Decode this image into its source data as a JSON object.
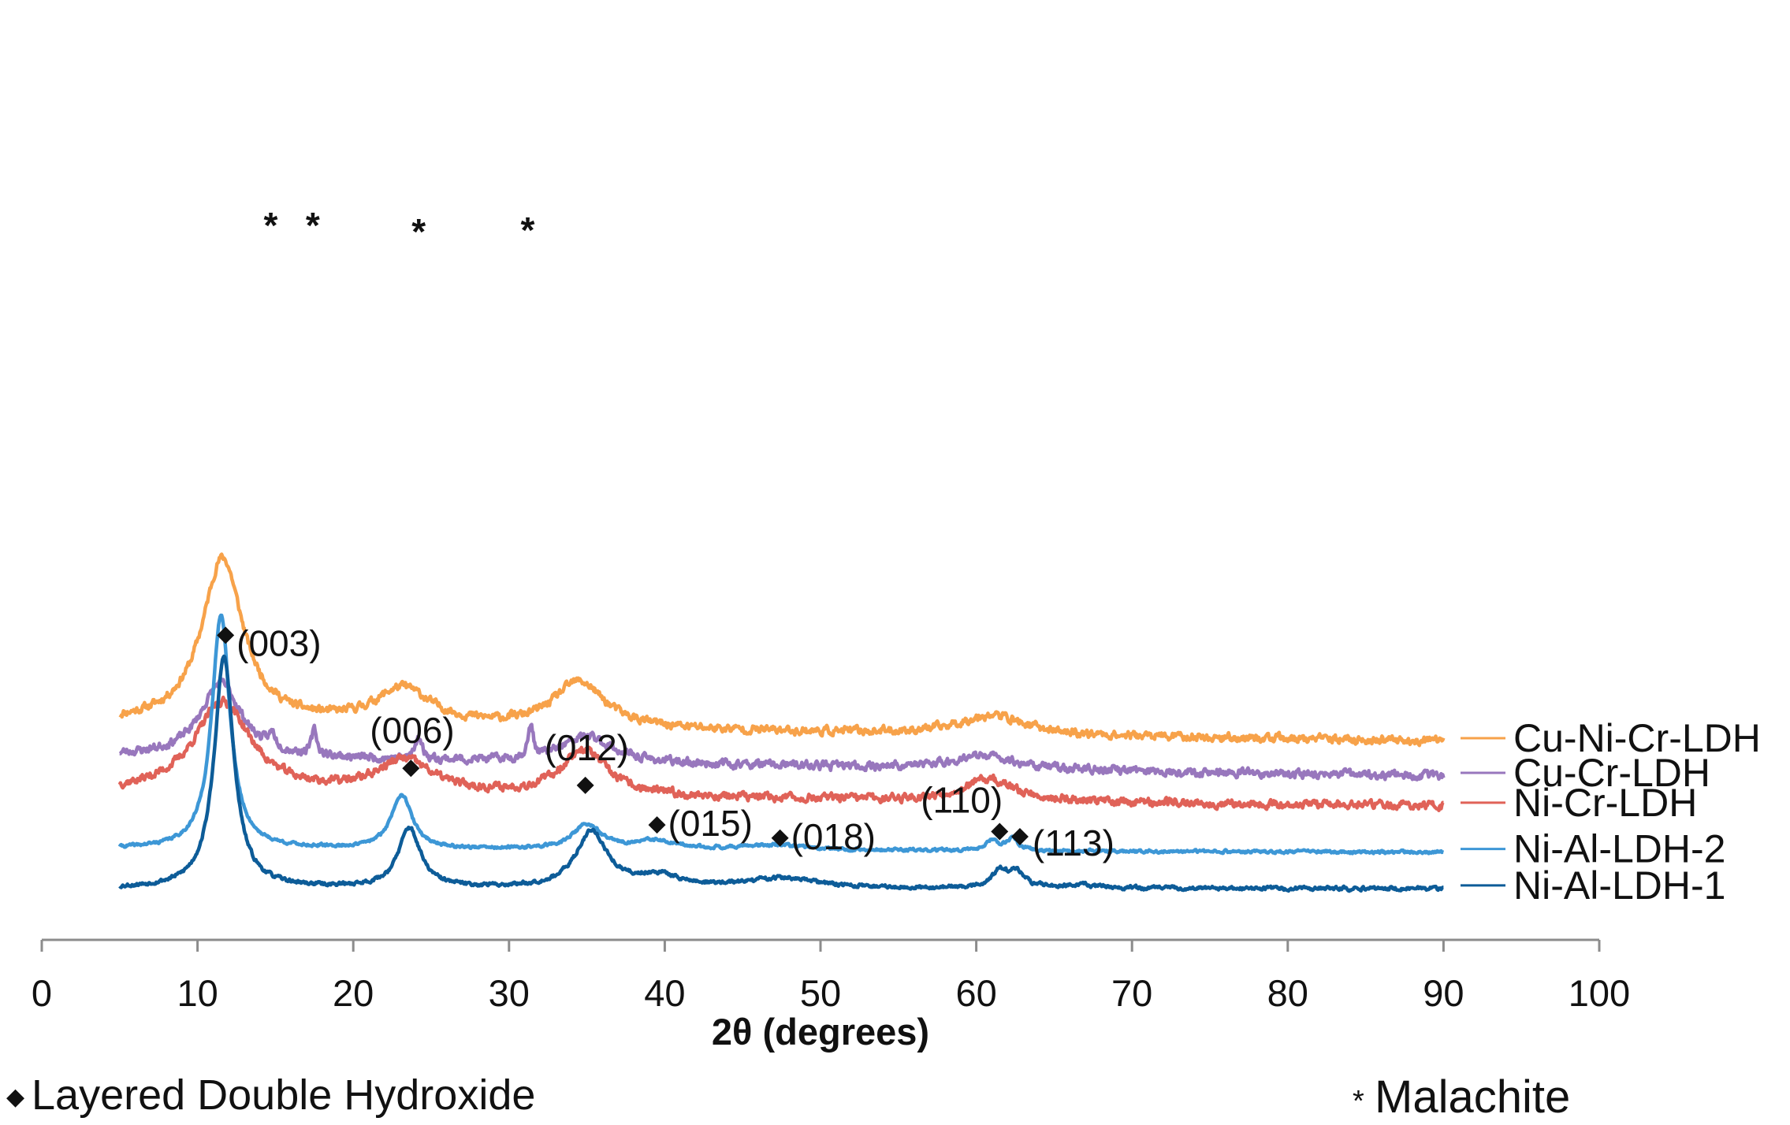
{
  "chart_data": {
    "type": "line",
    "title": "",
    "xlabel": "2θ (degrees)",
    "ylabel": "",
    "xlim": [
      0,
      100
    ],
    "x_ticks": [
      "0",
      "10",
      "20",
      "30",
      "40",
      "50",
      "60",
      "70",
      "80",
      "90",
      "100"
    ],
    "x_tick_values": [
      0,
      10,
      20,
      30,
      40,
      50,
      60,
      70,
      80,
      90,
      100
    ],
    "grid": false,
    "legend_position": "right (labels at end of each trace)",
    "series": [
      {
        "name": "Cu-Ni-Cr-LDH",
        "color": "#f7a24a",
        "baseline": 0.89,
        "slope": 0.11,
        "noise": 0.022,
        "seed": 11,
        "peaks": [
          [
            11.6,
            1.0,
            1.6
          ],
          [
            23.2,
            0.22,
            2.2
          ],
          [
            34.5,
            0.28,
            2.0
          ],
          [
            61.0,
            0.12,
            2.5
          ]
        ]
      },
      {
        "name": "Cu-Cr-LDH",
        "color": "#9877bd",
        "baseline": 0.68,
        "slope": 0.12,
        "noise": 0.022,
        "seed": 23,
        "peaks": [
          [
            11.5,
            0.45,
            1.6
          ],
          [
            14.8,
            0.08,
            0.25
          ],
          [
            17.5,
            0.15,
            0.2
          ],
          [
            24.2,
            0.14,
            0.25
          ],
          [
            31.4,
            0.19,
            0.2
          ],
          [
            35.0,
            0.16,
            2.0
          ],
          [
            60.5,
            0.08,
            2.5
          ]
        ]
      },
      {
        "name": "Ni-Cr-LDH",
        "color": "#e06258",
        "baseline": 0.5,
        "slope": 0.08,
        "noise": 0.022,
        "seed": 37,
        "peaks": [
          [
            11.6,
            0.55,
            2.2
          ],
          [
            23.3,
            0.2,
            2.2
          ],
          [
            34.8,
            0.28,
            1.8
          ],
          [
            60.8,
            0.13,
            2.0
          ]
        ]
      },
      {
        "name": "Ni-Al-LDH-2",
        "color": "#3d97d6",
        "baseline": 0.22,
        "slope": 0.02,
        "noise": 0.008,
        "seed": 41,
        "peaks": [
          [
            11.5,
            1.42,
            0.7
          ],
          [
            23.1,
            0.33,
            0.8
          ],
          [
            35.0,
            0.15,
            1.1
          ],
          [
            39.3,
            0.05,
            1.5
          ],
          [
            47.0,
            0.03,
            3.0
          ],
          [
            61.0,
            0.06,
            0.45
          ],
          [
            62.3,
            0.07,
            0.5
          ]
        ]
      },
      {
        "name": "Ni-Al-LDH-1",
        "color": "#0d5c98",
        "baseline": 0.0,
        "slope": 0.0,
        "noise": 0.01,
        "seed": 53,
        "peaks": [
          [
            11.7,
            1.4,
            0.75
          ],
          [
            23.6,
            0.36,
            0.85
          ],
          [
            35.3,
            0.34,
            1.2
          ],
          [
            39.6,
            0.07,
            1.6
          ],
          [
            47.5,
            0.06,
            2.8
          ],
          [
            61.5,
            0.1,
            0.6
          ],
          [
            62.6,
            0.09,
            0.6
          ],
          [
            66.5,
            0.02,
            1.5
          ]
        ]
      }
    ],
    "annotations": {
      "hkl_reflections": [
        {
          "label": "(003)",
          "x": 11.8,
          "series": "Ni-Al-LDH-1"
        },
        {
          "label": "(006)",
          "x": 23.7,
          "series": "Ni-Al-LDH-1"
        },
        {
          "label": "(012)",
          "x": 34.9,
          "series": "Ni-Al-LDH-1"
        },
        {
          "label": "(015)",
          "x": 39.5,
          "series": "Ni-Al-LDH-1"
        },
        {
          "label": "(018)",
          "x": 47.4,
          "series": "Ni-Al-LDH-1"
        },
        {
          "label": "(110)",
          "x": 61.5,
          "series": "Ni-Al-LDH-1"
        },
        {
          "label": "(113)",
          "x": 62.8,
          "series": "Ni-Al-LDH-1"
        }
      ],
      "malachite_peaks": [
        {
          "label": "*",
          "x": 14.7
        },
        {
          "label": "*",
          "x": 17.4
        },
        {
          "label": "*",
          "x": 24.2
        },
        {
          "label": "*",
          "x": 31.2
        }
      ]
    },
    "legend": [
      {
        "symbol": "◆",
        "label": "Layered Double Hydroxide"
      },
      {
        "symbol": "*",
        "label": "Malachite"
      }
    ]
  }
}
